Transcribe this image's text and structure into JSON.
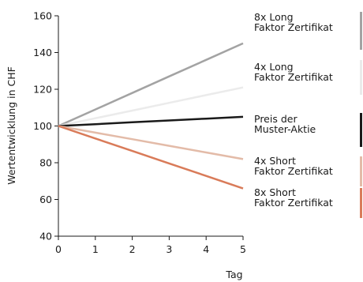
{
  "chart_data": {
    "type": "line",
    "xlabel": "Tag",
    "ylabel": "Wertentwicklung in CHF",
    "x": [
      0,
      1,
      2,
      3,
      4,
      5
    ],
    "xlim": [
      0,
      5
    ],
    "ylim": [
      40,
      160
    ],
    "xticks": [
      "0",
      "1",
      "2",
      "3",
      "4",
      "5"
    ],
    "yticks": [
      "40",
      "60",
      "80",
      "100",
      "120",
      "140",
      "160"
    ],
    "grid": false,
    "legend_position": "right",
    "series": [
      {
        "name": "8x Long Faktor Zertifikat",
        "name_lines": [
          "8x Long",
          "Faktor Zertifikat"
        ],
        "color": "#a3a3a3",
        "values": [
          100,
          109,
          118,
          127,
          136,
          145
        ]
      },
      {
        "name": "4x Long Faktor Zertifikat",
        "name_lines": [
          "4x Long",
          "Faktor Zertifikat"
        ],
        "color": "#ebebeb",
        "values": [
          100,
          104.2,
          108.4,
          112.6,
          116.8,
          121
        ]
      },
      {
        "name": "Preis der Muster-Aktie",
        "name_lines": [
          "Preis der",
          "Muster-Aktie"
        ],
        "color": "#1a1a1a",
        "values": [
          100,
          101,
          102,
          103,
          104,
          105
        ]
      },
      {
        "name": "4x Short Faktor Zertifikat",
        "name_lines": [
          "4x Short",
          "Faktor Zertifikat"
        ],
        "color": "#e3bba8",
        "values": [
          100,
          96.4,
          92.8,
          89.2,
          85.6,
          82
        ]
      },
      {
        "name": "8x Short Faktor Zertifikat",
        "name_lines": [
          "8x Short",
          "Faktor Zertifikat"
        ],
        "color": "#d97b59",
        "values": [
          100,
          93.2,
          86.4,
          79.6,
          72.8,
          66
        ]
      }
    ]
  }
}
